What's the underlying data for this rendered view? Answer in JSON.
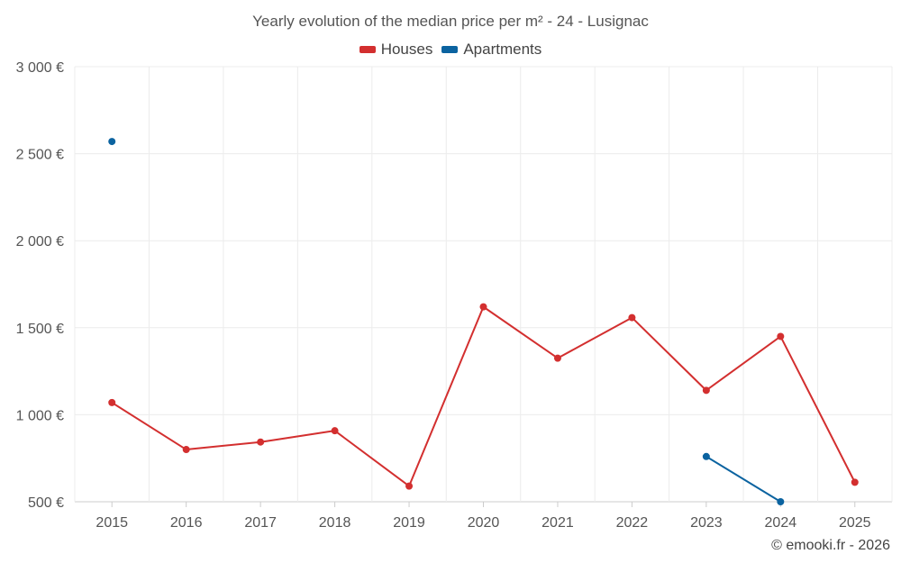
{
  "chart_data": {
    "type": "line",
    "title": "Yearly evolution of the median price per m² - 24 - Lusignac",
    "categories": [
      "2015",
      "2016",
      "2017",
      "2018",
      "2019",
      "2020",
      "2021",
      "2022",
      "2023",
      "2024",
      "2025"
    ],
    "series": [
      {
        "name": "Houses",
        "color": "#d32f2f",
        "values": [
          1070,
          800,
          843,
          908,
          590,
          1620,
          1325,
          1558,
          1140,
          1450,
          612
        ]
      },
      {
        "name": "Apartments",
        "color": "#0b63a0",
        "values": [
          2570,
          null,
          null,
          null,
          null,
          null,
          null,
          null,
          760,
          500,
          null
        ]
      }
    ],
    "ylim": [
      500,
      3000
    ],
    "yticks": [
      500,
      1000,
      1500,
      2000,
      2500,
      3000
    ],
    "ytick_labels": [
      "500 €",
      "1 000 €",
      "1 500 €",
      "2 000 €",
      "2 500 €",
      "3 000 €"
    ],
    "xlabel": "",
    "ylabel": "",
    "grid": true,
    "legend_position": "top-center"
  },
  "credit": "© emooki.fr - 2026"
}
